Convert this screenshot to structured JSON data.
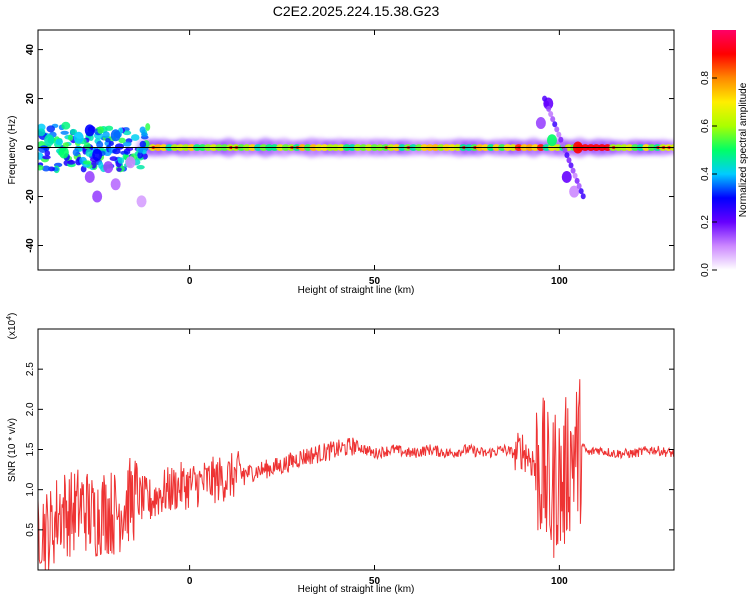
{
  "title": "C2E2.2025.224.15.38.G23",
  "chart_data": [
    {
      "type": "heatmap",
      "xlabel": "Height of straight line (km)",
      "ylabel": "Frequency (Hz)",
      "xlim": [
        -41,
        131
      ],
      "ylim": [
        -50,
        48
      ],
      "x_ticks": [
        0,
        50,
        100
      ],
      "x_tick_labels": [
        "0",
        "50",
        "100"
      ],
      "y_ticks": [
        -40,
        -20,
        0,
        20,
        40
      ],
      "y_tick_labels": [
        "-40",
        "-20",
        "0",
        "20",
        "40"
      ],
      "colorbar": {
        "label": "Normalized spectral amplitude",
        "range": [
          0,
          1
        ],
        "ticks": [
          0.0,
          0.2,
          0.4,
          0.6,
          0.8
        ],
        "tick_labels": [
          "0.0",
          "0.2",
          "0.4",
          "0.6",
          "0.8"
        ],
        "colors": [
          "#ffffff",
          "#cc88ff",
          "#6600ff",
          "#0000ff",
          "#00ccff",
          "#00ff66",
          "#aaff00",
          "#ffee00",
          "#ff8800",
          "#ff0000",
          "#ff0066"
        ]
      },
      "reference_line_hz": 0,
      "features": [
        {
          "x": -38,
          "y": 3,
          "value": 0.45
        },
        {
          "x": -34,
          "y": -2,
          "value": 0.5
        },
        {
          "x": -30,
          "y": 4,
          "value": 0.4
        },
        {
          "x": -27,
          "y": 7,
          "value": 0.3
        },
        {
          "x": -25,
          "y": -3,
          "value": 0.3
        },
        {
          "x": -20,
          "y": 5,
          "value": 0.35
        },
        {
          "x": -27,
          "y": -12,
          "value": 0.15
        },
        {
          "x": -25,
          "y": -20,
          "value": 0.15
        },
        {
          "x": -20,
          "y": -15,
          "value": 0.12
        },
        {
          "x": -22,
          "y": -8,
          "value": 0.15
        },
        {
          "x": -13,
          "y": -22,
          "value": 0.08
        },
        {
          "x": -16,
          "y": -6,
          "value": 0.1
        },
        {
          "x": 97,
          "y": 18,
          "value": 0.2
        },
        {
          "x": 95,
          "y": 10,
          "value": 0.15
        },
        {
          "x": 98,
          "y": 3,
          "value": 0.5
        },
        {
          "x": 102,
          "y": -12,
          "value": 0.2
        },
        {
          "x": 104,
          "y": -18,
          "value": 0.1
        },
        {
          "x": 105,
          "y": 0,
          "value": 0.9
        }
      ]
    },
    {
      "type": "line",
      "xlabel": "Height of straight line (km)",
      "ylabel": "SNR (10 * v/v)",
      "y_multiplier_label": "(x10",
      "y_multiplier_exponent": "4",
      "y_multiplier_close": ")",
      "xlim": [
        -41,
        131
      ],
      "ylim": [
        0,
        3.0
      ],
      "x_ticks": [
        0,
        50,
        100
      ],
      "x_tick_labels": [
        "0",
        "50",
        "100"
      ],
      "y_ticks": [
        0.5,
        1.0,
        1.5,
        2.0,
        2.5
      ],
      "y_tick_labels": [
        "0.5",
        "1.0",
        "1.5",
        "2.0",
        "2.5"
      ],
      "color": "#ee3333",
      "series": [
        {
          "x": [
            -41,
            -38,
            -35,
            -32,
            -29,
            -26,
            -23,
            -20,
            -17,
            -14,
            -11,
            -8,
            -5,
            -2,
            0,
            5,
            10,
            15,
            20,
            25,
            30,
            35,
            40,
            45,
            50,
            55,
            60,
            65,
            70,
            75,
            80,
            85,
            88,
            90,
            92,
            94,
            96,
            97,
            98,
            99,
            100,
            101,
            102,
            103,
            104,
            105,
            106,
            108,
            110,
            115,
            120,
            125,
            131
          ],
          "y": [
            0.6,
            0.45,
            0.75,
            0.7,
            0.8,
            0.65,
            0.75,
            0.7,
            0.85,
            0.9,
            0.85,
            0.95,
            1.0,
            1.05,
            1.05,
            1.1,
            1.15,
            1.2,
            1.25,
            1.3,
            1.4,
            1.45,
            1.5,
            1.55,
            1.45,
            1.5,
            1.45,
            1.5,
            1.45,
            1.5,
            1.45,
            1.5,
            1.45,
            1.5,
            1.4,
            1.3,
            1.2,
            1.0,
            0.9,
            1.2,
            1.1,
            1.0,
            1.3,
            1.4,
            1.5,
            1.45,
            1.55,
            1.45,
            1.5,
            1.45,
            1.45,
            1.5,
            1.45
          ]
        }
      ]
    }
  ]
}
